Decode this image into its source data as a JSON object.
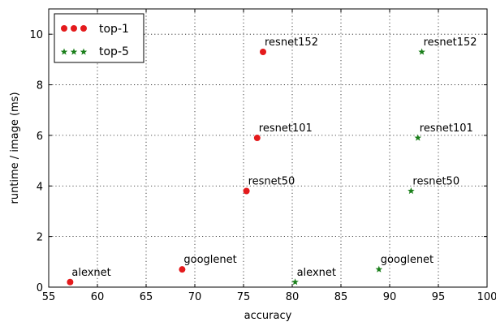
{
  "chart_data": {
    "type": "scatter",
    "title": "",
    "xlabel": "accuracy",
    "ylabel": "runtime / image (ms)",
    "xlim": [
      55,
      100
    ],
    "ylim": [
      0,
      11
    ],
    "xticks": [
      55,
      60,
      65,
      70,
      75,
      80,
      85,
      90,
      95,
      100
    ],
    "yticks": [
      0,
      2,
      4,
      6,
      8,
      10
    ],
    "grid": true,
    "legend_position": "top-left",
    "series": [
      {
        "name": "top-1",
        "color": "#e41a1c",
        "marker": "circle",
        "points": [
          {
            "label": "alexnet",
            "x": 57.2,
            "y": 0.2
          },
          {
            "label": "googlenet",
            "x": 68.7,
            "y": 0.7
          },
          {
            "label": "resnet50",
            "x": 75.3,
            "y": 3.8
          },
          {
            "label": "resnet101",
            "x": 76.4,
            "y": 5.9
          },
          {
            "label": "resnet152",
            "x": 77.0,
            "y": 9.3
          }
        ]
      },
      {
        "name": "top-5",
        "color": "#1a7f1a",
        "marker": "star",
        "points": [
          {
            "label": "alexnet",
            "x": 80.3,
            "y": 0.2
          },
          {
            "label": "googlenet",
            "x": 88.9,
            "y": 0.7
          },
          {
            "label": "resnet50",
            "x": 92.2,
            "y": 3.8
          },
          {
            "label": "resnet101",
            "x": 92.9,
            "y": 5.9
          },
          {
            "label": "resnet152",
            "x": 93.3,
            "y": 9.3
          }
        ]
      }
    ]
  }
}
